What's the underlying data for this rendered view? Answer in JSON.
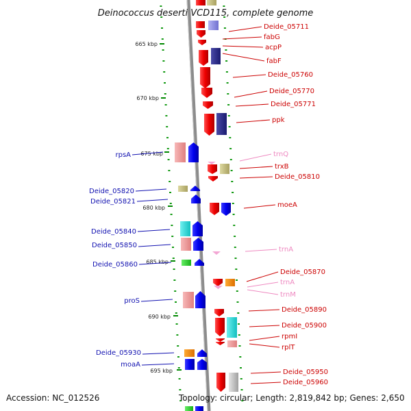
{
  "title": "Deinococcus deserti VCD115, complete genome",
  "footer": {
    "accession": "Accession: NC_012526",
    "topology": "Topology: circular; Length: 2,819,842 bp; Genes: 2,650"
  },
  "kbp_ticks": [
    {
      "label": "665 kbp",
      "kbp": 665
    },
    {
      "label": "670 kbp",
      "kbp": 670
    },
    {
      "label": "675 kbp",
      "kbp": 675
    },
    {
      "label": "680 kbp",
      "kbp": 680
    },
    {
      "label": "685 kbp",
      "kbp": 685
    },
    {
      "label": "690 kbp",
      "kbp": 690
    },
    {
      "label": "695 kbp",
      "kbp": 695
    }
  ],
  "legend_colors": {
    "cds_minus_red": "#ee0000",
    "cds_plus_blue": "#0000ee",
    "trna_pink": "#f3a6d4",
    "label_blue": "#1010b0",
    "label_red": "#cc0000",
    "label_pink": "#ee88c0"
  },
  "right_labels": [
    {
      "name": "Deide_05711",
      "color": "#cc0000"
    },
    {
      "name": "fabG",
      "color": "#cc0000"
    },
    {
      "name": "acpP",
      "color": "#cc0000"
    },
    {
      "name": "fabF",
      "color": "#cc0000"
    },
    {
      "name": "Deide_05760",
      "color": "#cc0000"
    },
    {
      "name": "Deide_05770",
      "color": "#cc0000"
    },
    {
      "name": "Deide_05771",
      "color": "#cc0000"
    },
    {
      "name": "ppk",
      "color": "#cc0000"
    },
    {
      "name": "trnQ",
      "color": "#ee88c0"
    },
    {
      "name": "trxB",
      "color": "#cc0000"
    },
    {
      "name": "Deide_05810",
      "color": "#cc0000"
    },
    {
      "name": "moeA",
      "color": "#cc0000"
    },
    {
      "name": "trnA",
      "color": "#ee88c0"
    },
    {
      "name": "Deide_05870",
      "color": "#cc0000"
    },
    {
      "name": "trnA",
      "color": "#ee88c0"
    },
    {
      "name": "trnM",
      "color": "#ee88c0"
    },
    {
      "name": "Deide_05890",
      "color": "#cc0000"
    },
    {
      "name": "Deide_05900",
      "color": "#cc0000"
    },
    {
      "name": "rpmI",
      "color": "#cc0000"
    },
    {
      "name": "rplT",
      "color": "#cc0000"
    },
    {
      "name": "Deide_05950",
      "color": "#cc0000"
    },
    {
      "name": "Deide_05960",
      "color": "#cc0000"
    }
  ],
  "left_labels": [
    {
      "name": "rpsA",
      "color": "#1010b0"
    },
    {
      "name": "Deide_05820",
      "color": "#1010b0"
    },
    {
      "name": "Deide_05821",
      "color": "#1010b0"
    },
    {
      "name": "Deide_05840",
      "color": "#1010b0"
    },
    {
      "name": "Deide_05850",
      "color": "#1010b0"
    },
    {
      "name": "Deide_05860",
      "color": "#1010b0"
    },
    {
      "name": "proS",
      "color": "#1010b0"
    },
    {
      "name": "Deide_05930",
      "color": "#1010b0"
    },
    {
      "name": "moaA",
      "color": "#1010b0"
    }
  ]
}
